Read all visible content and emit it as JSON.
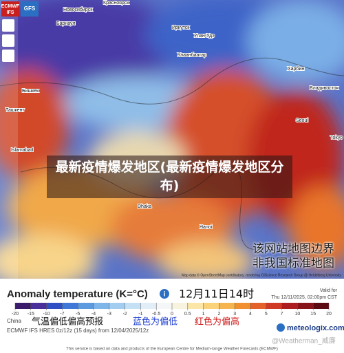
{
  "header": {
    "tabs": [
      "ECMWF",
      "IFS",
      "GFS"
    ]
  },
  "map": {
    "places": [
      "Новосибирск",
      "Красноярск",
      "Барнаул",
      "Иркутск",
      "Улан-Удэ",
      "Улаанбаатар",
      "Бишкек",
      "Ташкент",
      "Islamabad",
      "Харбин",
      "Владивосток",
      "Seoul",
      "Tokyo",
      "Dhaka",
      "Hanoi"
    ],
    "attribution": "Map data © OpenStreetMap contributors, rendering GIScience Research Group @ Heidelberg University",
    "disclaimer": [
      "该网站地图边界",
      "非我国标准地图"
    ]
  },
  "overlay_title": "最新疫情爆发地区(最新疫情爆发地区分布)",
  "legend": {
    "title": "Anomaly temperature (K=°C)",
    "time": "12月11日14时",
    "valid_label": "Valid for",
    "valid": "Thu 12/11/2025, 02:00pm CST",
    "scale": {
      "ticks": [
        -20,
        -15,
        -10,
        -7,
        -5,
        -4,
        -3,
        -2,
        -1,
        -0.5,
        0,
        0.5,
        1,
        2,
        3,
        4,
        5,
        7,
        10,
        15,
        20
      ],
      "colors": [
        "#3b1b6b",
        "#4b2f9a",
        "#2f4fc2",
        "#3f78d6",
        "#5c9ae0",
        "#7fb6ea",
        "#a2cdf0",
        "#c4e0f5",
        "#e1eef8",
        "#f4f6f7",
        "#f8f3df",
        "#fbe6a8",
        "#f9d27a",
        "#f6b44e",
        "#f0902f",
        "#e4622a",
        "#d03a25",
        "#ac1e1f",
        "#861419",
        "#5c0a12"
      ]
    },
    "region": "China",
    "caption": [
      "气温偏低偏高预报",
      "蓝色为偏低",
      "红色为偏高"
    ],
    "model": "ECMWF IFS HRES 0z/12z (15 days) from 12/04/2025/12z",
    "brand": "meteologix.com",
    "watermark": "@Weatherman_威廉",
    "footer": "This service is based on data and products of the European Centre for Medium-range Weather Forecasts (ECMWF)"
  }
}
